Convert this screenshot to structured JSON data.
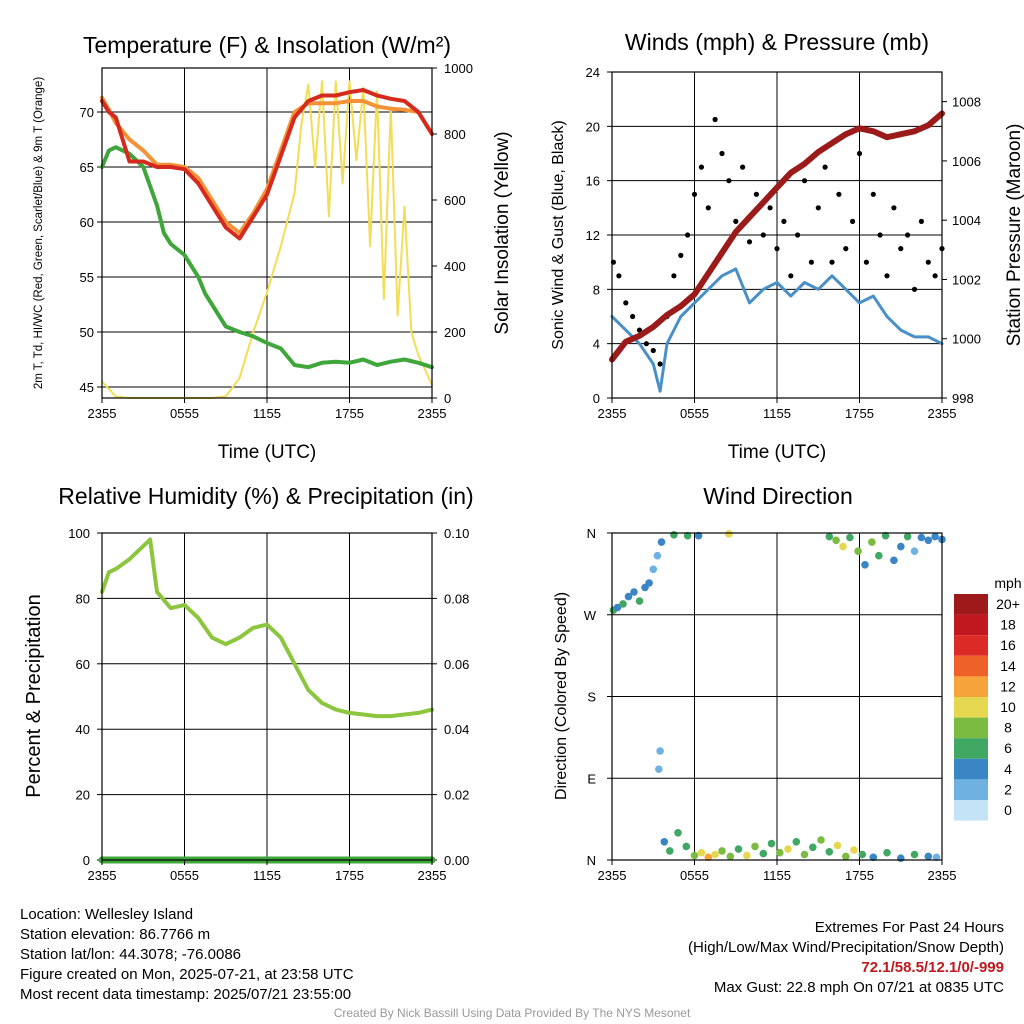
{
  "figure": {
    "panels": {
      "temperature": {
        "title": "Temperature (F) & Insolation (W/m²)",
        "y_left_label": "2m T, Td, HI/WC (Red, Green, Scarlet/Blue) & 9m T (Orange)",
        "y_right_label": "Solar Insolation (Yellow)",
        "x_label": "Time (UTC)"
      },
      "winds": {
        "title": "Winds (mph) & Pressure (mb)",
        "y_left_label": "Sonic Wind & Gust (Blue, Black)",
        "y_right_label": "Station Pressure (Maroon)",
        "x_label": "Time (UTC)"
      },
      "humidity": {
        "title": "Relative Humidity (%) & Precipitation (in)",
        "y_left_label": "Percent & Precipitation",
        "x_label": ""
      },
      "direction": {
        "title": "Wind Direction",
        "y_left_label": "Direction (Colored By Speed)",
        "x_label": "",
        "legend_title": "mph",
        "legend_labels": [
          "20+",
          "18",
          "16",
          "14",
          "12",
          "10",
          "8",
          "6",
          "4",
          "2",
          "0"
        ],
        "legend_colors": [
          "#9e1a1a",
          "#c0181e",
          "#dc2b26",
          "#ee6129",
          "#f5a33a",
          "#e5d850",
          "#7cbb42",
          "#41a864",
          "#3a85c4",
          "#6fb2e2",
          "#c3e4f7"
        ]
      }
    }
  },
  "info": {
    "location": "Location: Wellesley Island",
    "elevation": "Station elevation: 86.7766 m",
    "latlon": "Station lat/lon: 44.3078; -76.0086",
    "created": "Figure created on Mon, 2025-07-21, at 23:58 UTC",
    "recent": "Most recent data timestamp: 2025/07/21 23:55:00",
    "extremes_title": "Extremes For Past 24 Hours",
    "extremes_desc": "(High/Low/Max Wind/Precipitation/Snow Depth)",
    "extremes_values": "72.1/58.5/12.1/0/-999",
    "max_gust": "Max Gust: 22.8 mph On 07/21 at 0835 UTC",
    "credit": "Created By Nick Bassill Using Data Provided By The NYS Mesonet"
  },
  "chart_data": [
    {
      "type": "line",
      "title": "Temperature (F) & Insolation (W/m²)",
      "xlabel": "Time (UTC)",
      "ylabel": "2m T, Td, HI/WC (Red, Green, Scarlet/Blue) & 9m T (Orange)",
      "y2label": "Solar Insolation (Yellow)",
      "x_ticks": [
        "2355",
        "0555",
        "1155",
        "1755",
        "2355"
      ],
      "x_range_hours": [
        0,
        24
      ],
      "ylim": [
        44,
        74
      ],
      "y_ticks": [
        45,
        50,
        55,
        60,
        65,
        70
      ],
      "y2lim": [
        0,
        1000
      ],
      "y2_ticks": [
        0,
        200,
        400,
        600,
        800,
        1000
      ],
      "grid": true,
      "series": [
        {
          "axis": "y",
          "color": "#d62a1e",
          "x": [
            0,
            0.5,
            1,
            2,
            3,
            4,
            5,
            6,
            7,
            8,
            9,
            10,
            11,
            12,
            13,
            14,
            15,
            16,
            17,
            18,
            19,
            20,
            21,
            22,
            23,
            24
          ],
          "values": [
            71,
            70,
            69.5,
            65.5,
            65.5,
            65,
            65,
            64.8,
            63.5,
            61.5,
            59.5,
            58.5,
            60.5,
            62.5,
            66,
            69.5,
            71,
            71.5,
            71.5,
            71.8,
            72,
            71.5,
            71.2,
            71,
            70,
            68
          ]
        },
        {
          "axis": "y",
          "color": "#f39237",
          "x": [
            0,
            0.5,
            1,
            2,
            3,
            4,
            5,
            6,
            7,
            8,
            9,
            10,
            11,
            12,
            13,
            14,
            15,
            16,
            17,
            18,
            19,
            20,
            21,
            22,
            23,
            24
          ],
          "values": [
            71.3,
            70.2,
            69,
            67.5,
            66.5,
            65.2,
            65.2,
            65,
            64,
            62,
            60,
            59,
            60.8,
            63,
            66.5,
            70,
            70.8,
            70.8,
            70.8,
            71,
            71,
            70.5,
            70.3,
            70.2,
            70,
            68
          ]
        },
        {
          "axis": "y",
          "color": "#3fa63b",
          "x": [
            0,
            0.5,
            1,
            2,
            3,
            4,
            4.5,
            5,
            6,
            7,
            7.5,
            8,
            9,
            10,
            11,
            12,
            13,
            14,
            15,
            16,
            17,
            18,
            19,
            20,
            21,
            22,
            23,
            24
          ],
          "values": [
            65,
            66.5,
            66.8,
            66.2,
            65,
            61.5,
            59,
            58,
            57,
            55,
            53.5,
            52.5,
            50.5,
            50,
            49.6,
            49,
            48.5,
            47,
            46.8,
            47.2,
            47.3,
            47.2,
            47.5,
            47,
            47.3,
            47.5,
            47.2,
            46.8
          ]
        },
        {
          "axis": "y2",
          "color": "#f2de56",
          "x": [
            0,
            1,
            2,
            3,
            4,
            5,
            6,
            7,
            8,
            9,
            10,
            11,
            12,
            13,
            14,
            14.5,
            15,
            15.5,
            16,
            16.5,
            17,
            17.5,
            18,
            18.5,
            19,
            19.5,
            20,
            20.5,
            21,
            21.5,
            22,
            22.5,
            23,
            24
          ],
          "values": [
            50,
            5,
            0,
            0,
            0,
            0,
            0,
            0,
            0,
            5,
            60,
            200,
            320,
            460,
            620,
            830,
            950,
            700,
            960,
            550,
            960,
            650,
            960,
            720,
            940,
            460,
            930,
            300,
            880,
            250,
            580,
            200,
            130,
            40
          ]
        }
      ]
    },
    {
      "type": "line",
      "title": "Winds (mph) & Pressure (mb)",
      "xlabel": "Time (UTC)",
      "ylabel": "Sonic Wind & Gust (Blue, Black)",
      "y2label": "Station Pressure (Maroon)",
      "x_ticks": [
        "2355",
        "0555",
        "1155",
        "1755",
        "2355"
      ],
      "ylim": [
        0,
        24
      ],
      "y_ticks": [
        0,
        4,
        8,
        12,
        16,
        20,
        24
      ],
      "y2lim": [
        998,
        1009
      ],
      "y2_ticks": [
        998,
        1000,
        1002,
        1004,
        1006,
        1008
      ],
      "grid": true,
      "series": [
        {
          "name": "Wind",
          "axis": "y",
          "color": "#4a90c8",
          "x": [
            0,
            1,
            2,
            3,
            3.5,
            4,
            5,
            6,
            7,
            8,
            9,
            10,
            11,
            12,
            13,
            14,
            15,
            16,
            17,
            18,
            19,
            20,
            21,
            22,
            23,
            24
          ],
          "values": [
            6,
            5,
            4,
            2.5,
            0.5,
            4,
            6,
            7,
            8,
            9,
            9.5,
            7,
            8,
            8.5,
            7.5,
            8.5,
            8,
            9,
            8,
            7,
            7.5,
            6,
            5,
            4.5,
            4.5,
            4
          ]
        },
        {
          "name": "Gust",
          "axis": "y",
          "color": "#000000",
          "mode": "markers",
          "x": [
            0.1,
            0.5,
            1,
            1.5,
            2,
            2.5,
            3,
            3.5,
            4,
            4.5,
            5,
            5.5,
            6,
            6.5,
            7,
            7.5,
            8,
            8.5,
            9,
            9.5,
            10,
            10.5,
            11,
            11.5,
            12,
            12.5,
            13,
            13.5,
            14,
            14.5,
            15,
            15.5,
            16,
            16.5,
            17,
            17.5,
            18,
            18.5,
            19,
            19.5,
            20,
            20.5,
            21,
            21.5,
            22,
            22.5,
            23,
            23.5,
            24
          ],
          "values": [
            10,
            9,
            7,
            6,
            5,
            4,
            3.5,
            2.5,
            6,
            9,
            10.5,
            12,
            15,
            17,
            14,
            20.5,
            18,
            16,
            13,
            17,
            11.5,
            15,
            12,
            14,
            11,
            13,
            9,
            12,
            16,
            10,
            14,
            17,
            10,
            15,
            11,
            13,
            18,
            10,
            15,
            12,
            9,
            14,
            11,
            12,
            8,
            13,
            10,
            9,
            11
          ]
        },
        {
          "name": "Pressure",
          "axis": "y2",
          "color": "#9b1b1b",
          "x": [
            0,
            1,
            2,
            3,
            4,
            5,
            6,
            7,
            8,
            9,
            10,
            11,
            12,
            13,
            14,
            15,
            16,
            17,
            18,
            19,
            20,
            21,
            22,
            23,
            24
          ],
          "values": [
            999.3,
            999.9,
            1000.1,
            1000.4,
            1000.8,
            1001.1,
            1001.5,
            1002.2,
            1002.9,
            1003.6,
            1004.1,
            1004.6,
            1005.1,
            1005.6,
            1005.9,
            1006.3,
            1006.6,
            1006.9,
            1007.1,
            1007.0,
            1006.8,
            1006.9,
            1007.0,
            1007.2,
            1007.6
          ]
        }
      ]
    },
    {
      "type": "line",
      "title": "Relative Humidity (%) & Precipitation (in)",
      "ylabel": "Percent & Precipitation",
      "x_ticks": [
        "2355",
        "0555",
        "1155",
        "1755",
        "2355"
      ],
      "ylim": [
        0,
        100
      ],
      "y_ticks": [
        0,
        20,
        40,
        60,
        80,
        100
      ],
      "y2lim": [
        0,
        0.1
      ],
      "y2_ticks": [
        "0.00",
        "0.02",
        "0.04",
        "0.06",
        "0.08",
        "0.10"
      ],
      "grid": true,
      "series": [
        {
          "name": "RH",
          "axis": "y",
          "color": "#8cc63f",
          "x": [
            0,
            0.5,
            1,
            2,
            3,
            3.5,
            4,
            5,
            6,
            7,
            8,
            9,
            10,
            11,
            12,
            13,
            14,
            15,
            16,
            17,
            18,
            19,
            20,
            21,
            22,
            23,
            24
          ],
          "values": [
            82,
            88,
            89,
            92,
            96,
            98,
            82,
            77,
            78,
            74,
            68,
            66,
            68,
            71,
            72,
            68,
            60,
            52,
            48,
            46,
            45,
            44.5,
            44,
            44,
            44.5,
            45,
            46
          ]
        },
        {
          "name": "Precipitation",
          "axis": "y2",
          "color": "#3fa63b",
          "x": [
            0,
            24
          ],
          "values": [
            0,
            0
          ]
        }
      ]
    },
    {
      "type": "scatter",
      "title": "Wind Direction",
      "ylabel": "Direction (Colored By Speed)",
      "x_ticks": [
        "2355",
        "0555",
        "1155",
        "1755",
        "2355"
      ],
      "y_ticks": [
        "N",
        "E",
        "S",
        "W",
        "N"
      ],
      "ylim_degrees": [
        0,
        360
      ],
      "grid": true,
      "points": [
        {
          "x": 0.1,
          "dir": 275,
          "spd": 6
        },
        {
          "x": 0.4,
          "dir": 278,
          "spd": 4
        },
        {
          "x": 0.8,
          "dir": 282,
          "spd": 5
        },
        {
          "x": 1.2,
          "dir": 290,
          "spd": 4
        },
        {
          "x": 1.6,
          "dir": 295,
          "spd": 3
        },
        {
          "x": 2.0,
          "dir": 285,
          "spd": 5
        },
        {
          "x": 2.4,
          "dir": 300,
          "spd": 4
        },
        {
          "x": 2.7,
          "dir": 305,
          "spd": 3
        },
        {
          "x": 3.0,
          "dir": 320,
          "spd": 2
        },
        {
          "x": 3.3,
          "dir": 335,
          "spd": 1
        },
        {
          "x": 3.6,
          "dir": 350,
          "spd": 4
        },
        {
          "x": 3.5,
          "dir": 120,
          "spd": 1
        },
        {
          "x": 3.4,
          "dir": 100,
          "spd": 2
        },
        {
          "x": 3.8,
          "dir": 20,
          "spd": 4
        },
        {
          "x": 4.2,
          "dir": 10,
          "spd": 5
        },
        {
          "x": 4.8,
          "dir": 30,
          "spd": 6
        },
        {
          "x": 5.4,
          "dir": 15,
          "spd": 5
        },
        {
          "x": 6.0,
          "dir": 5,
          "spd": 8
        },
        {
          "x": 6.5,
          "dir": 8,
          "spd": 10
        },
        {
          "x": 7.0,
          "dir": 3,
          "spd": 12
        },
        {
          "x": 7.5,
          "dir": 6,
          "spd": 9
        },
        {
          "x": 8.0,
          "dir": 10,
          "spd": 7
        },
        {
          "x": 8.6,
          "dir": 4,
          "spd": 8
        },
        {
          "x": 9.2,
          "dir": 12,
          "spd": 6
        },
        {
          "x": 9.8,
          "dir": 5,
          "spd": 9
        },
        {
          "x": 10.4,
          "dir": 15,
          "spd": 7
        },
        {
          "x": 11.0,
          "dir": 7,
          "spd": 6
        },
        {
          "x": 11.6,
          "dir": 18,
          "spd": 5
        },
        {
          "x": 12.2,
          "dir": 8,
          "spd": 8
        },
        {
          "x": 12.8,
          "dir": 12,
          "spd": 10
        },
        {
          "x": 13.4,
          "dir": 20,
          "spd": 6
        },
        {
          "x": 14.0,
          "dir": 6,
          "spd": 7
        },
        {
          "x": 14.6,
          "dir": 14,
          "spd": 5
        },
        {
          "x": 15.2,
          "dir": 22,
          "spd": 8
        },
        {
          "x": 15.8,
          "dir": 9,
          "spd": 6
        },
        {
          "x": 16.4,
          "dir": 16,
          "spd": 9
        },
        {
          "x": 17.0,
          "dir": 4,
          "spd": 7
        },
        {
          "x": 17.6,
          "dir": 11,
          "spd": 10
        },
        {
          "x": 18.2,
          "dir": 6,
          "spd": 5
        },
        {
          "x": 19.0,
          "dir": 3,
          "spd": 4
        },
        {
          "x": 20.0,
          "dir": 8,
          "spd": 6
        },
        {
          "x": 21.0,
          "dir": 2,
          "spd": 3
        },
        {
          "x": 22.0,
          "dir": 6,
          "spd": 5
        },
        {
          "x": 23.0,
          "dir": 4,
          "spd": 4
        },
        {
          "x": 23.6,
          "dir": 3,
          "spd": 2
        },
        {
          "x": 4.5,
          "dir": 358,
          "spd": 6
        },
        {
          "x": 5.5,
          "dir": 357,
          "spd": 5
        },
        {
          "x": 6.3,
          "dir": 357,
          "spd": 4
        },
        {
          "x": 8.5,
          "dir": 359,
          "spd": 9
        },
        {
          "x": 15.8,
          "dir": 356,
          "spd": 6
        },
        {
          "x": 16.3,
          "dir": 352,
          "spd": 7
        },
        {
          "x": 16.8,
          "dir": 345,
          "spd": 10
        },
        {
          "x": 17.3,
          "dir": 355,
          "spd": 5
        },
        {
          "x": 17.9,
          "dir": 340,
          "spd": 7
        },
        {
          "x": 18.4,
          "dir": 325,
          "spd": 4
        },
        {
          "x": 18.9,
          "dir": 350,
          "spd": 8
        },
        {
          "x": 19.4,
          "dir": 335,
          "spd": 6
        },
        {
          "x": 19.9,
          "dir": 357,
          "spd": 5
        },
        {
          "x": 20.5,
          "dir": 330,
          "spd": 4
        },
        {
          "x": 21.0,
          "dir": 345,
          "spd": 3
        },
        {
          "x": 21.5,
          "dir": 356,
          "spd": 6
        },
        {
          "x": 22.0,
          "dir": 340,
          "spd": 2
        },
        {
          "x": 22.5,
          "dir": 355,
          "spd": 4
        },
        {
          "x": 23.0,
          "dir": 352,
          "spd": 3
        },
        {
          "x": 23.5,
          "dir": 356,
          "spd": 4
        },
        {
          "x": 24.0,
          "dir": 353,
          "spd": 3
        }
      ]
    }
  ]
}
